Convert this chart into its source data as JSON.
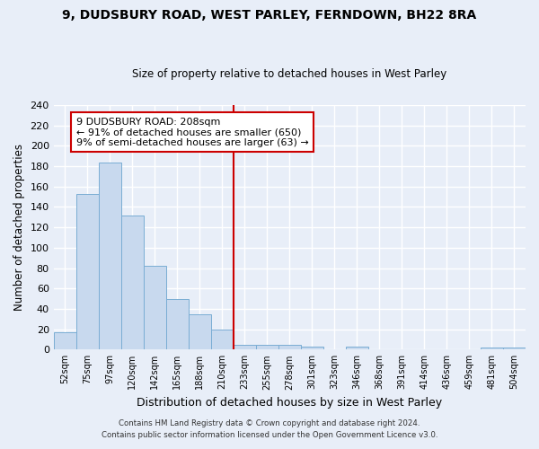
{
  "title1": "9, DUDSBURY ROAD, WEST PARLEY, FERNDOWN, BH22 8RA",
  "title2": "Size of property relative to detached houses in West Parley",
  "xlabel": "Distribution of detached houses by size in West Parley",
  "ylabel": "Number of detached properties",
  "bin_labels": [
    "52sqm",
    "75sqm",
    "97sqm",
    "120sqm",
    "142sqm",
    "165sqm",
    "188sqm",
    "210sqm",
    "233sqm",
    "255sqm",
    "278sqm",
    "301sqm",
    "323sqm",
    "346sqm",
    "368sqm",
    "391sqm",
    "414sqm",
    "436sqm",
    "459sqm",
    "481sqm",
    "504sqm"
  ],
  "bar_heights": [
    17,
    153,
    184,
    132,
    82,
    50,
    35,
    20,
    5,
    5,
    5,
    3,
    0,
    3,
    0,
    0,
    0,
    0,
    0,
    2,
    2
  ],
  "bar_color": "#c8d9ee",
  "bar_edge_color": "#7aadd4",
  "vline_color": "#cc0000",
  "annotation_title": "9 DUDSBURY ROAD: 208sqm",
  "annotation_line1": "← 91% of detached houses are smaller (650)",
  "annotation_line2": "9% of semi-detached houses are larger (63) →",
  "annotation_box_color": "#ffffff",
  "annotation_box_edge": "#cc0000",
  "footer1": "Contains HM Land Registry data © Crown copyright and database right 2024.",
  "footer2": "Contains public sector information licensed under the Open Government Licence v3.0.",
  "ylim": [
    0,
    240
  ],
  "yticks": [
    0,
    20,
    40,
    60,
    80,
    100,
    120,
    140,
    160,
    180,
    200,
    220,
    240
  ],
  "bg_color": "#e8eef8",
  "grid_color": "#ffffff",
  "vline_index": 7.5
}
